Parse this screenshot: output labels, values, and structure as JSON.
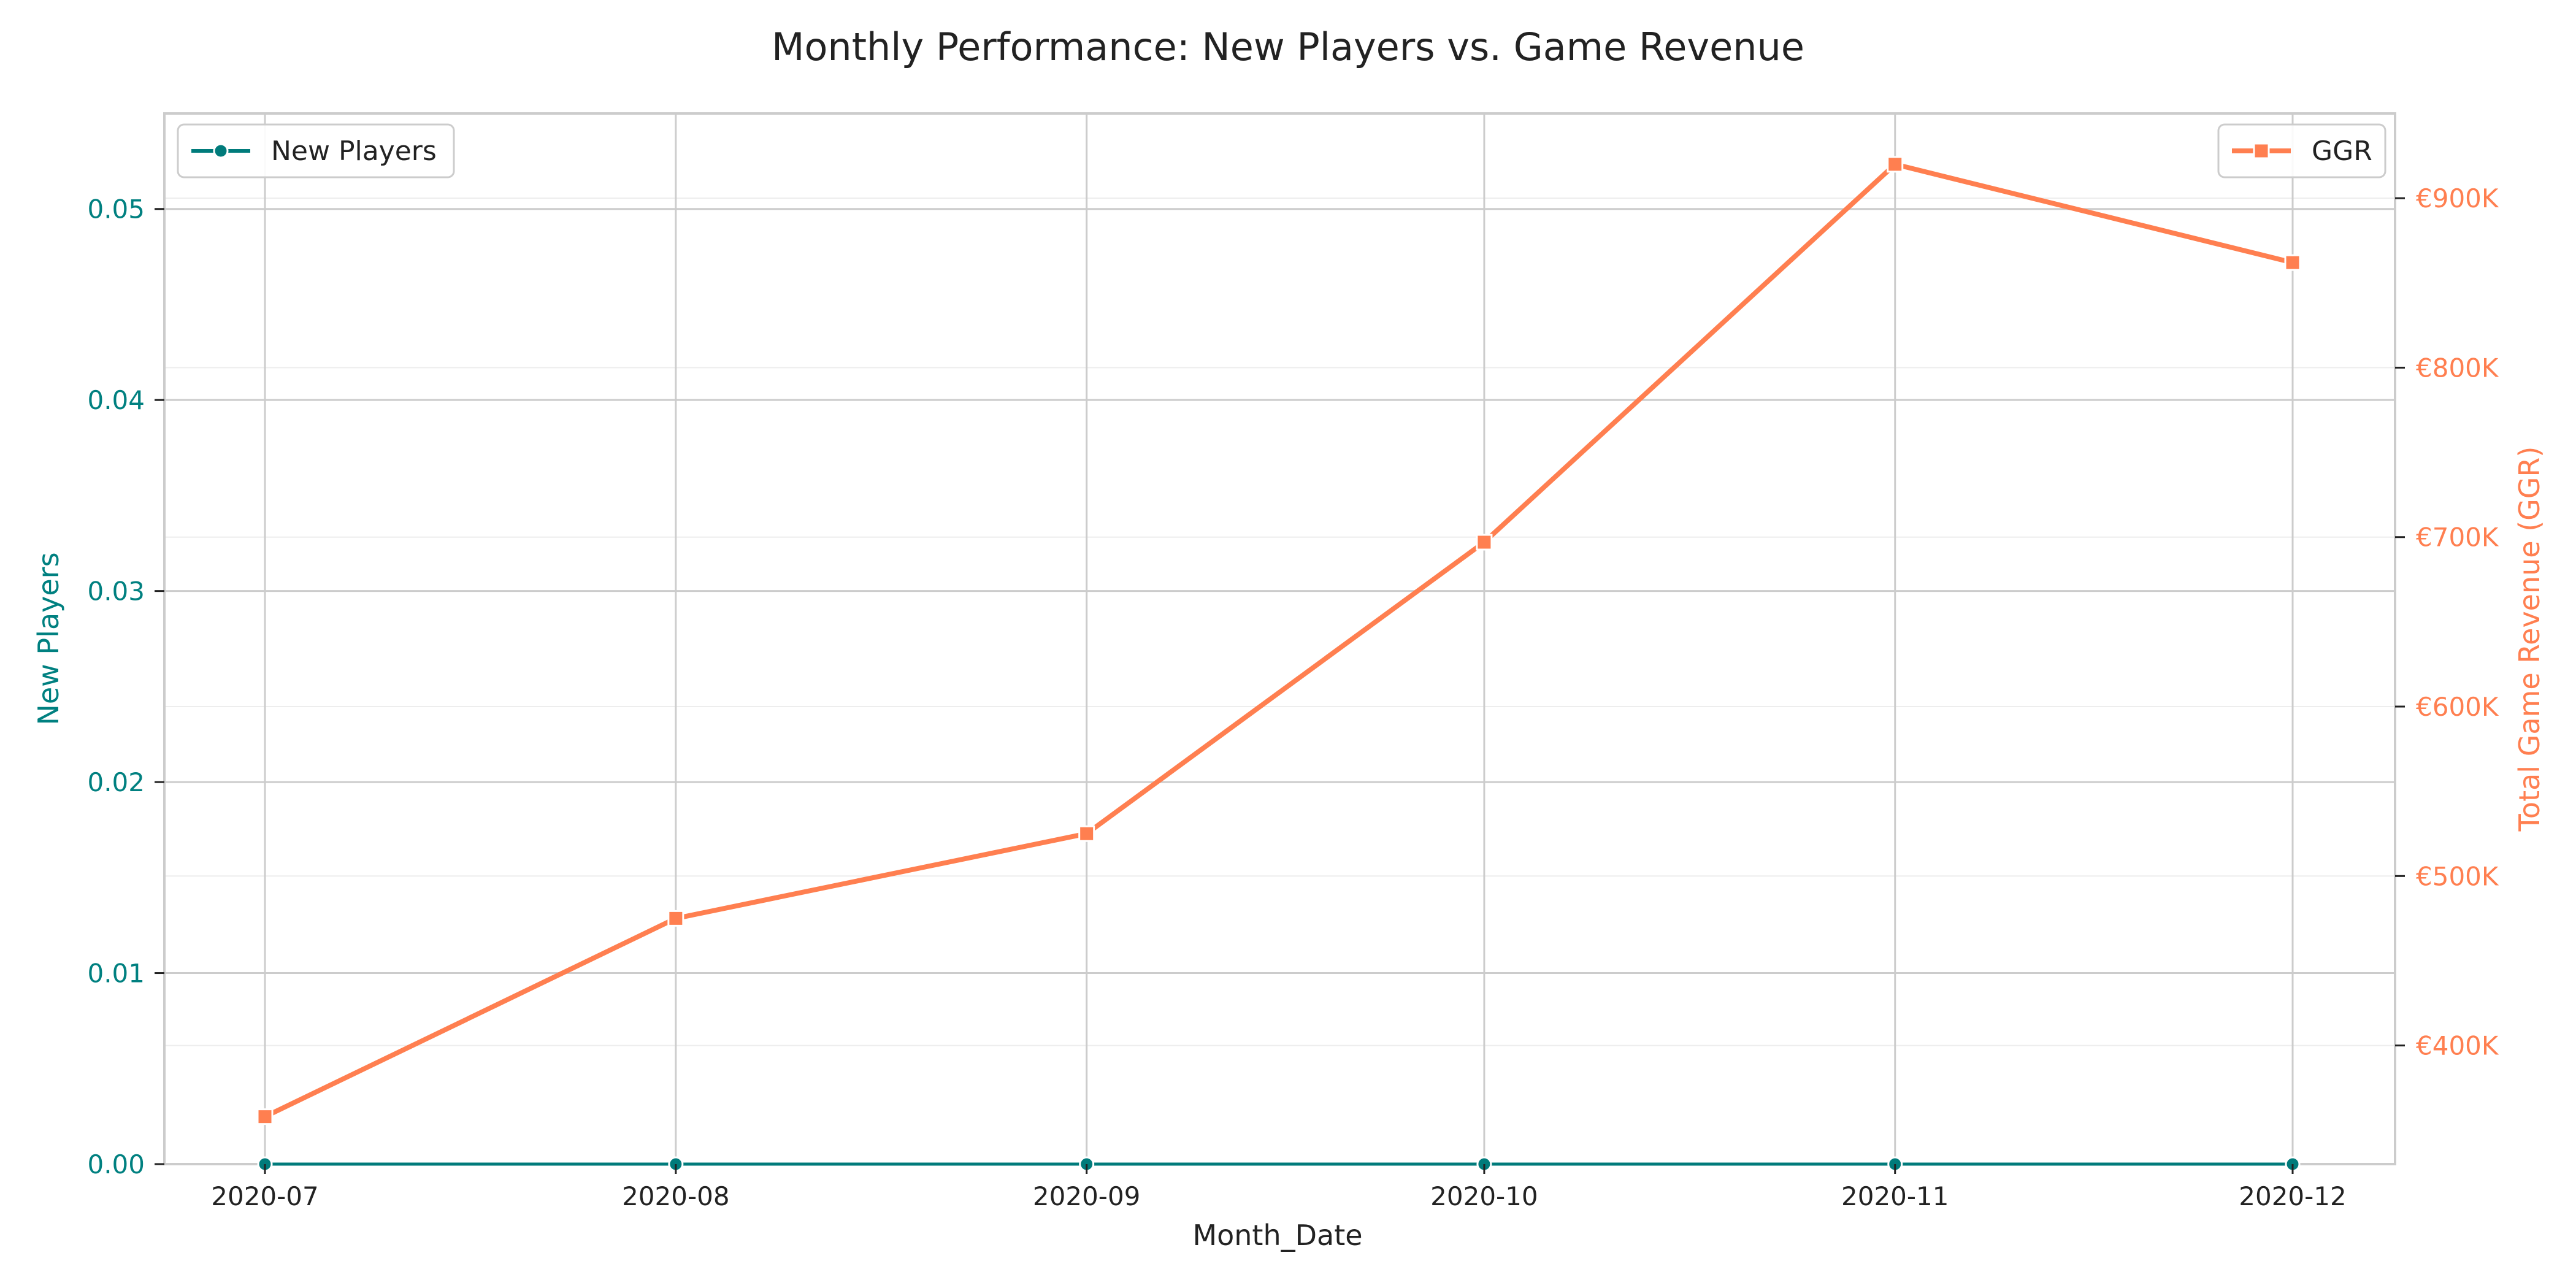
{
  "chart_data": {
    "type": "line",
    "title": "Monthly Performance: New Players vs. Game Revenue",
    "xlabel": "Month_Date",
    "categories": [
      "2020-07",
      "2020-08",
      "2020-09",
      "2020-10",
      "2020-11",
      "2020-12"
    ],
    "x_offsets": [
      0,
      31,
      62,
      92,
      123,
      153
    ],
    "y_left": {
      "label": "New Players",
      "range": [
        0,
        0.055
      ],
      "ticks": [
        0,
        0.01,
        0.02,
        0.03,
        0.04,
        0.05
      ],
      "tick_labels": [
        "0.00",
        "0.01",
        "0.02",
        "0.03",
        "0.04",
        "0.05"
      ],
      "color": "#008080"
    },
    "y_right": {
      "label": "Total Game Revenue (GGR)",
      "range": [
        330000,
        950000
      ],
      "ticks": [
        400000,
        500000,
        600000,
        700000,
        800000,
        900000
      ],
      "tick_labels": [
        "€400K",
        "€500K",
        "€600K",
        "€700K",
        "€800K",
        "€900K"
      ],
      "color": "#FF7F50"
    },
    "series": [
      {
        "name": "New Players",
        "axis": "left",
        "color": "#007B7B",
        "marker": "circle",
        "values": [
          0,
          0,
          0,
          0,
          0,
          0
        ]
      },
      {
        "name": "GGR",
        "axis": "right",
        "color": "#FF7F50",
        "marker": "square",
        "values": [
          358000,
          475000,
          525000,
          697000,
          920000,
          862000
        ]
      }
    ],
    "legends": [
      {
        "series": "New Players",
        "placement": "top-left"
      },
      {
        "series": "GGR",
        "placement": "top-right"
      }
    ],
    "grid": true
  }
}
